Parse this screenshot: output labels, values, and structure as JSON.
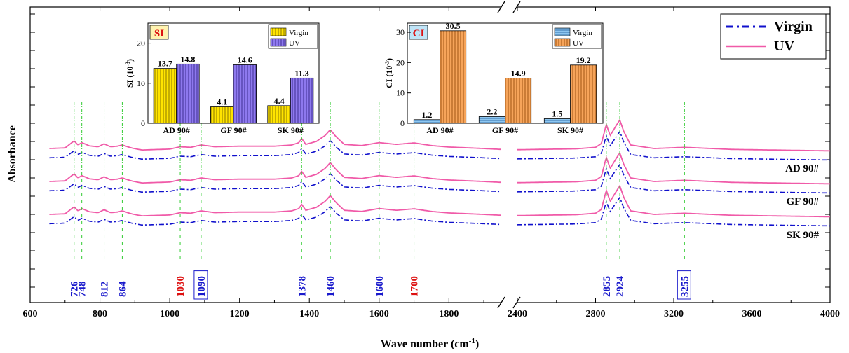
{
  "chart_data": [
    {
      "type": "line",
      "xlabel": "Wave number (cm",
      "xlabel_sup": "-1",
      "xlabel_close": ")",
      "ylabel": "Absorbance",
      "x_axis": {
        "broken": true,
        "left_range": [
          600,
          1950
        ],
        "right_range": [
          2400,
          4000
        ],
        "left_ticks": [
          "600",
          "800",
          "1000",
          "1200",
          "1400",
          "1600",
          "1800"
        ],
        "right_ticks": [
          "2400",
          "2800",
          "3200",
          "3600",
          "4000"
        ]
      },
      "legend": {
        "placement": "top-right",
        "entries": [
          {
            "label": "Virgin",
            "style": "dash-dot",
            "color": "#1010cc"
          },
          {
            "label": "UV",
            "style": "solid",
            "color": "#f05aa8"
          }
        ]
      },
      "sample_labels": [
        "AD 90#",
        "GF 90#",
        "SK 90#"
      ],
      "peak_markers": [
        {
          "wavenumber": 726,
          "label": "726",
          "color": "#1a1acc",
          "boxed": false
        },
        {
          "wavenumber": 748,
          "label": "748",
          "color": "#1a1acc",
          "boxed": false
        },
        {
          "wavenumber": 812,
          "label": "812",
          "color": "#1a1acc",
          "boxed": false
        },
        {
          "wavenumber": 864,
          "label": "864",
          "color": "#1a1acc",
          "boxed": false
        },
        {
          "wavenumber": 1030,
          "label": "1030",
          "color": "#dd1111",
          "boxed": false
        },
        {
          "wavenumber": 1090,
          "label": "1090",
          "color": "#1a1acc",
          "boxed": true
        },
        {
          "wavenumber": 1378,
          "label": "1378",
          "color": "#1a1acc",
          "boxed": false
        },
        {
          "wavenumber": 1460,
          "label": "1460",
          "color": "#1a1acc",
          "boxed": false
        },
        {
          "wavenumber": 1600,
          "label": "1600",
          "color": "#1a1acc",
          "boxed": false
        },
        {
          "wavenumber": 1700,
          "label": "1700",
          "color": "#dd1111",
          "boxed": false
        },
        {
          "wavenumber": 2855,
          "label": "2855",
          "color": "#1a1acc",
          "boxed": false
        },
        {
          "wavenumber": 2924,
          "label": "2924",
          "color": "#1a1acc",
          "boxed": false
        },
        {
          "wavenumber": 3255,
          "label": "3255",
          "color": "#1a1acc",
          "boxed": true
        }
      ],
      "series_colors": {
        "virgin": "#1010cc",
        "uv": "#f05aa8"
      },
      "offsets": {
        "AD 90#": 2.0,
        "GF 90#": 1.0,
        "SK 90#": 0.0
      },
      "spectrum_left": [
        [
          655,
          0.38
        ],
        [
          700,
          0.4
        ],
        [
          726,
          0.64
        ],
        [
          737,
          0.5
        ],
        [
          748,
          0.58
        ],
        [
          770,
          0.47
        ],
        [
          795,
          0.44
        ],
        [
          812,
          0.54
        ],
        [
          830,
          0.44
        ],
        [
          850,
          0.46
        ],
        [
          864,
          0.5
        ],
        [
          890,
          0.4
        ],
        [
          920,
          0.33
        ],
        [
          1000,
          0.36
        ],
        [
          1030,
          0.44
        ],
        [
          1060,
          0.42
        ],
        [
          1090,
          0.5
        ],
        [
          1130,
          0.44
        ],
        [
          1200,
          0.46
        ],
        [
          1300,
          0.46
        ],
        [
          1350,
          0.5
        ],
        [
          1370,
          0.58
        ],
        [
          1378,
          0.72
        ],
        [
          1390,
          0.52
        ],
        [
          1420,
          0.62
        ],
        [
          1445,
          0.82
        ],
        [
          1460,
          1.02
        ],
        [
          1475,
          0.8
        ],
        [
          1500,
          0.52
        ],
        [
          1550,
          0.48
        ],
        [
          1600,
          0.58
        ],
        [
          1650,
          0.52
        ],
        [
          1700,
          0.57
        ],
        [
          1750,
          0.48
        ],
        [
          1800,
          0.43
        ],
        [
          1900,
          0.38
        ],
        [
          1950,
          0.35
        ]
      ],
      "spectrum_right": [
        [
          2400,
          0.34
        ],
        [
          2700,
          0.37
        ],
        [
          2800,
          0.42
        ],
        [
          2830,
          0.55
        ],
        [
          2855,
          1.2
        ],
        [
          2875,
          0.82
        ],
        [
          2900,
          1.1
        ],
        [
          2924,
          1.35
        ],
        [
          2945,
          0.95
        ],
        [
          2980,
          0.5
        ],
        [
          3100,
          0.38
        ],
        [
          3255,
          0.42
        ],
        [
          3500,
          0.35
        ],
        [
          4000,
          0.3
        ]
      ]
    },
    {
      "type": "bar",
      "badge": "SI",
      "ylabel": "SI (10",
      "ylabel_sup": "-3",
      "ylabel_close": ")",
      "ylim": [
        0,
        25
      ],
      "yticks": [
        "0",
        "10",
        "20"
      ],
      "categories": [
        "AD 90#",
        "GF 90#",
        "SK 90#"
      ],
      "series": [
        {
          "name": "Virgin",
          "values": [
            13.7,
            4.1,
            4.4
          ],
          "labels": [
            "13.7",
            "4.1",
            "4.4"
          ],
          "color": "#ffe400",
          "pattern": "vertical-lines"
        },
        {
          "name": "UV",
          "values": [
            14.8,
            14.6,
            11.3
          ],
          "labels": [
            "14.8",
            "14.6",
            "11.3"
          ],
          "color": "#8e79ee",
          "pattern": "vertical-lines"
        }
      ],
      "legend": {
        "placement": "top-right"
      }
    },
    {
      "type": "bar",
      "badge": "CI",
      "ylabel": "CI (10",
      "ylabel_sup": "-3",
      "ylabel_close": ")",
      "ylim": [
        0,
        33
      ],
      "yticks": [
        "0",
        "10",
        "20",
        "30"
      ],
      "categories": [
        "AD 90#",
        "GF 90#",
        "SK 90#"
      ],
      "series": [
        {
          "name": "Virgin",
          "values": [
            1.2,
            2.2,
            1.5
          ],
          "labels": [
            "1.2",
            "2.2",
            "1.5"
          ],
          "color": "#8ec7f0",
          "pattern": "horizontal-lines"
        },
        {
          "name": "UV",
          "values": [
            30.5,
            14.9,
            19.2
          ],
          "labels": [
            "30.5",
            "14.9",
            "19.2"
          ],
          "color": "#f6a45a",
          "pattern": "vertical-lines"
        }
      ],
      "legend": {
        "placement": "top-right"
      }
    }
  ]
}
